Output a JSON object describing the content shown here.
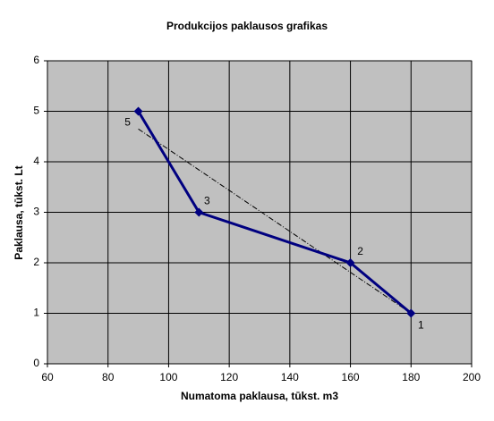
{
  "chart_data": {
    "type": "scatter",
    "title": "Produkcijos paklausos grafikas",
    "x_label": "Numatoma paklausa, tūkst. m3",
    "y_label": "Paklausa, tūkst. Lt",
    "series": [
      {
        "x": [
          90,
          110,
          160,
          180
        ],
        "values": [
          5,
          3,
          2,
          1
        ],
        "color": "#000080",
        "point_labels": [
          "5",
          "3",
          "2",
          "1"
        ]
      }
    ],
    "trendline": {
      "x": [
        90,
        180
      ],
      "values": [
        4.65,
        1.0
      ],
      "color": "#000000"
    },
    "xlim": [
      60,
      200
    ],
    "xticks": [
      60,
      80,
      100,
      120,
      140,
      160,
      180,
      200
    ],
    "ylim": [
      0,
      6
    ],
    "yticks": [
      0,
      1,
      2,
      3,
      4,
      5,
      6
    ],
    "grid": true
  }
}
